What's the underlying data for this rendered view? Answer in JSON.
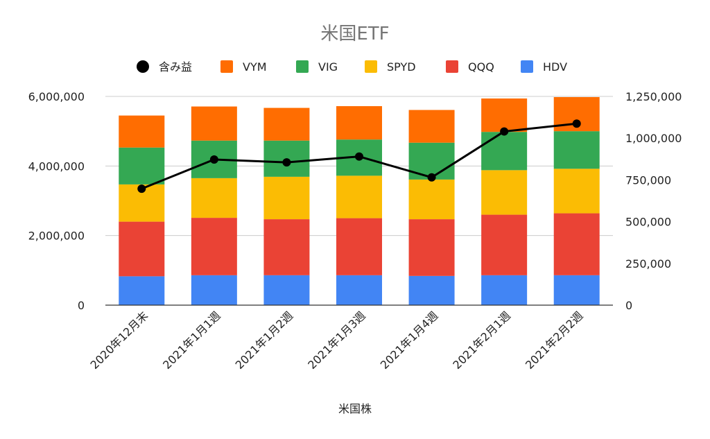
{
  "chart_data": {
    "type": "bar",
    "stacked": true,
    "title": "米国ETF",
    "xlabel": "米国株",
    "categories": [
      "2020年12月末",
      "2021年1月1週",
      "2021年1月2週",
      "2021年1月3週",
      "2021年1月4週",
      "2021年2月1週",
      "2021年2月2週"
    ],
    "series": [
      {
        "name": "HDV",
        "color": "#4285F4",
        "values": [
          830000,
          860000,
          860000,
          860000,
          840000,
          860000,
          860000
        ]
      },
      {
        "name": "QQQ",
        "color": "#EA4335",
        "values": [
          1570000,
          1650000,
          1610000,
          1640000,
          1630000,
          1740000,
          1780000
        ]
      },
      {
        "name": "SPYD",
        "color": "#FBBC04",
        "values": [
          1070000,
          1140000,
          1220000,
          1220000,
          1140000,
          1280000,
          1280000
        ]
      },
      {
        "name": "VIG",
        "color": "#34A853",
        "values": [
          1060000,
          1080000,
          1040000,
          1040000,
          1060000,
          1100000,
          1080000
        ]
      },
      {
        "name": "VYM",
        "color": "#FF6D01",
        "values": [
          920000,
          980000,
          940000,
          960000,
          940000,
          960000,
          980000
        ]
      }
    ],
    "line_series": {
      "name": "含み益",
      "color": "#000000",
      "axis": "right",
      "values": [
        697000,
        872000,
        855000,
        890000,
        765000,
        1040000,
        1087000
      ]
    },
    "legend_order": [
      "含み益",
      "VYM",
      "VIG",
      "SPYD",
      "QQQ",
      "HDV"
    ],
    "legend_position": "top",
    "y_left": {
      "min": 0,
      "max": 6000000,
      "ticks": [
        0,
        2000000,
        4000000,
        6000000
      ],
      "tick_labels": [
        "0",
        "2,000,000",
        "4,000,000",
        "6,000,000"
      ]
    },
    "y_right": {
      "min": 0,
      "max": 1250000,
      "ticks": [
        0,
        250000,
        500000,
        750000,
        1000000,
        1250000
      ],
      "tick_labels": [
        "0",
        "250,000",
        "500,000",
        "750,000",
        "1,000,000",
        "1,250,000"
      ]
    },
    "grid": true
  }
}
